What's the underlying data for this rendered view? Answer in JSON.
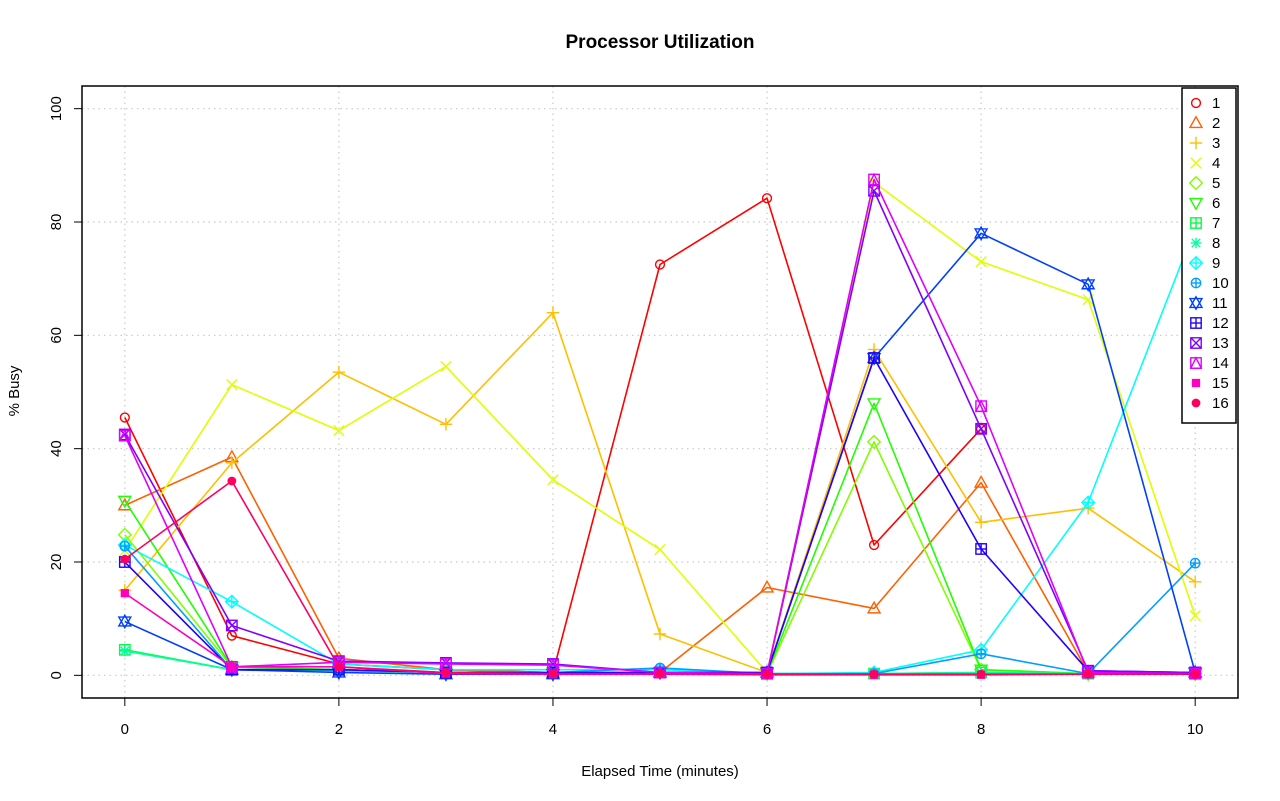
{
  "chart_data": {
    "type": "line",
    "title": "Processor Utilization",
    "xlabel": "Elapsed Time (minutes)",
    "ylabel": "% Busy",
    "xlim": [
      -0.4,
      10.4
    ],
    "ylim": [
      -4,
      104
    ],
    "x_ticks": [
      0,
      2,
      4,
      6,
      8,
      10
    ],
    "y_ticks": [
      0,
      20,
      40,
      60,
      80,
      100
    ],
    "grid": true,
    "legend_position": "top-right",
    "x": [
      0,
      1,
      2,
      3,
      4,
      5,
      6,
      7,
      8,
      9,
      10
    ],
    "series": [
      {
        "name": "1",
        "color": "#FF0000",
        "marker": "circle",
        "values": [
          45.5,
          7,
          2,
          1,
          0.5,
          72.5,
          84.2,
          23,
          43.5,
          null,
          null
        ]
      },
      {
        "name": "2",
        "color": "#FF6000",
        "marker": "triangle-up",
        "values": [
          30,
          38.5,
          3,
          1,
          0.5,
          0.5,
          15.5,
          11.8,
          34,
          0.5,
          0.5
        ]
      },
      {
        "name": "3",
        "color": "#FFBF00",
        "marker": "plus",
        "values": [
          15,
          37.5,
          53.5,
          44.3,
          64,
          7.3,
          0.5,
          57.5,
          27,
          29.5,
          16.5
        ]
      },
      {
        "name": "4",
        "color": "#DFFF00",
        "marker": "cross",
        "values": [
          22,
          51.3,
          43.2,
          54.5,
          34.5,
          22.2,
          0.5,
          87,
          73,
          66.3,
          10.5
        ]
      },
      {
        "name": "5",
        "color": "#80FF00",
        "marker": "diamond",
        "values": [
          24.8,
          1.5,
          1,
          0.5,
          0.5,
          0.5,
          0.3,
          41.2,
          1,
          0.3,
          0.3
        ]
      },
      {
        "name": "6",
        "color": "#20FF00",
        "marker": "triangle-down",
        "values": [
          30.8,
          1.5,
          1,
          0.5,
          0.5,
          0.5,
          0.3,
          48,
          1,
          0.3,
          0.3
        ]
      },
      {
        "name": "7",
        "color": "#00FF40",
        "marker": "square-plus",
        "values": [
          4.5,
          1,
          1,
          0.5,
          0.5,
          0.5,
          0.3,
          0.3,
          0.5,
          0.3,
          0.3
        ]
      },
      {
        "name": "8",
        "color": "#00FF9F",
        "marker": "asterisk",
        "values": [
          4.3,
          1,
          0.8,
          0.5,
          0.5,
          0.5,
          0.3,
          0.3,
          0.5,
          0.3,
          0.3
        ]
      },
      {
        "name": "9",
        "color": "#00FFFF",
        "marker": "diamond-plus",
        "values": [
          23,
          13,
          2,
          1,
          1,
          1,
          0.3,
          0.5,
          4.5,
          30.5,
          79
        ]
      },
      {
        "name": "10",
        "color": "#009FFF",
        "marker": "circle-plus",
        "values": [
          22.8,
          1,
          1,
          0.5,
          0.5,
          1.3,
          0.3,
          0.3,
          3.8,
          0.3,
          19.8
        ]
      },
      {
        "name": "11",
        "color": "#0040FF",
        "marker": "star-of-david",
        "values": [
          9.5,
          1,
          0.5,
          0.2,
          0.2,
          0.5,
          0.5,
          56,
          78,
          69,
          0.5
        ]
      },
      {
        "name": "12",
        "color": "#2000FF",
        "marker": "square-plus",
        "values": [
          20,
          1,
          1,
          0.5,
          0.5,
          0.5,
          0.5,
          56,
          22.3,
          0.8,
          0.5
        ]
      },
      {
        "name": "13",
        "color": "#8000FF",
        "marker": "square-cross",
        "values": [
          42.5,
          8.8,
          2.5,
          2.2,
          2,
          0.5,
          0.3,
          85.5,
          43.5,
          0.8,
          0.5
        ]
      },
      {
        "name": "14",
        "color": "#DF00FF",
        "marker": "square-triangle",
        "values": [
          42.3,
          1.5,
          2.3,
          2,
          1.8,
          0.5,
          0.3,
          87.5,
          47.5,
          0.5,
          0.3
        ]
      },
      {
        "name": "15",
        "color": "#FF00BF",
        "marker": "square-small",
        "values": [
          14.5,
          1.5,
          1.5,
          0.3,
          0.2,
          0.2,
          0.1,
          0.1,
          0.1,
          0.2,
          0.2
        ]
      },
      {
        "name": "16",
        "color": "#FF0060",
        "marker": "dot",
        "values": [
          20.5,
          34.3,
          1.5,
          0.5,
          0.3,
          0.3,
          0.2,
          0.2,
          0.2,
          0.2,
          0.2
        ]
      }
    ]
  }
}
